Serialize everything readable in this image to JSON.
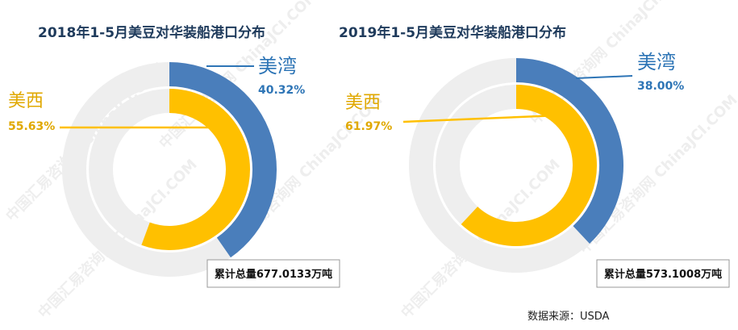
{
  "chart_data": [
    {
      "type": "donut",
      "title": "2018年1-5月美豆对华装船港口分布",
      "series": [
        {
          "name": "美湾",
          "value": 40.32,
          "label": "40.32%",
          "color": "#4a7ebb"
        },
        {
          "name": "美西",
          "value": 55.63,
          "label": "55.63%",
          "color": "#ffc000"
        }
      ],
      "total_label": "累计总量677.0133万吨"
    },
    {
      "type": "donut",
      "title": "2019年1-5月美豆对华装船港口分布",
      "series": [
        {
          "name": "美湾",
          "value": 38.0,
          "label": "38.00%",
          "color": "#4a7ebb"
        },
        {
          "name": "美西",
          "value": 61.97,
          "label": "61.97%",
          "color": "#ffc000"
        }
      ],
      "total_label": "累计总量573.1008万吨"
    }
  ],
  "source": "数据来源：USDA",
  "watermark": {
    "text": "中国汇易咨询网 ChinaJCI.COM"
  },
  "colors": {
    "us_gulf_label": "#2e75b6",
    "us_west_label": "#e0a800",
    "track": "#eeeeee"
  }
}
